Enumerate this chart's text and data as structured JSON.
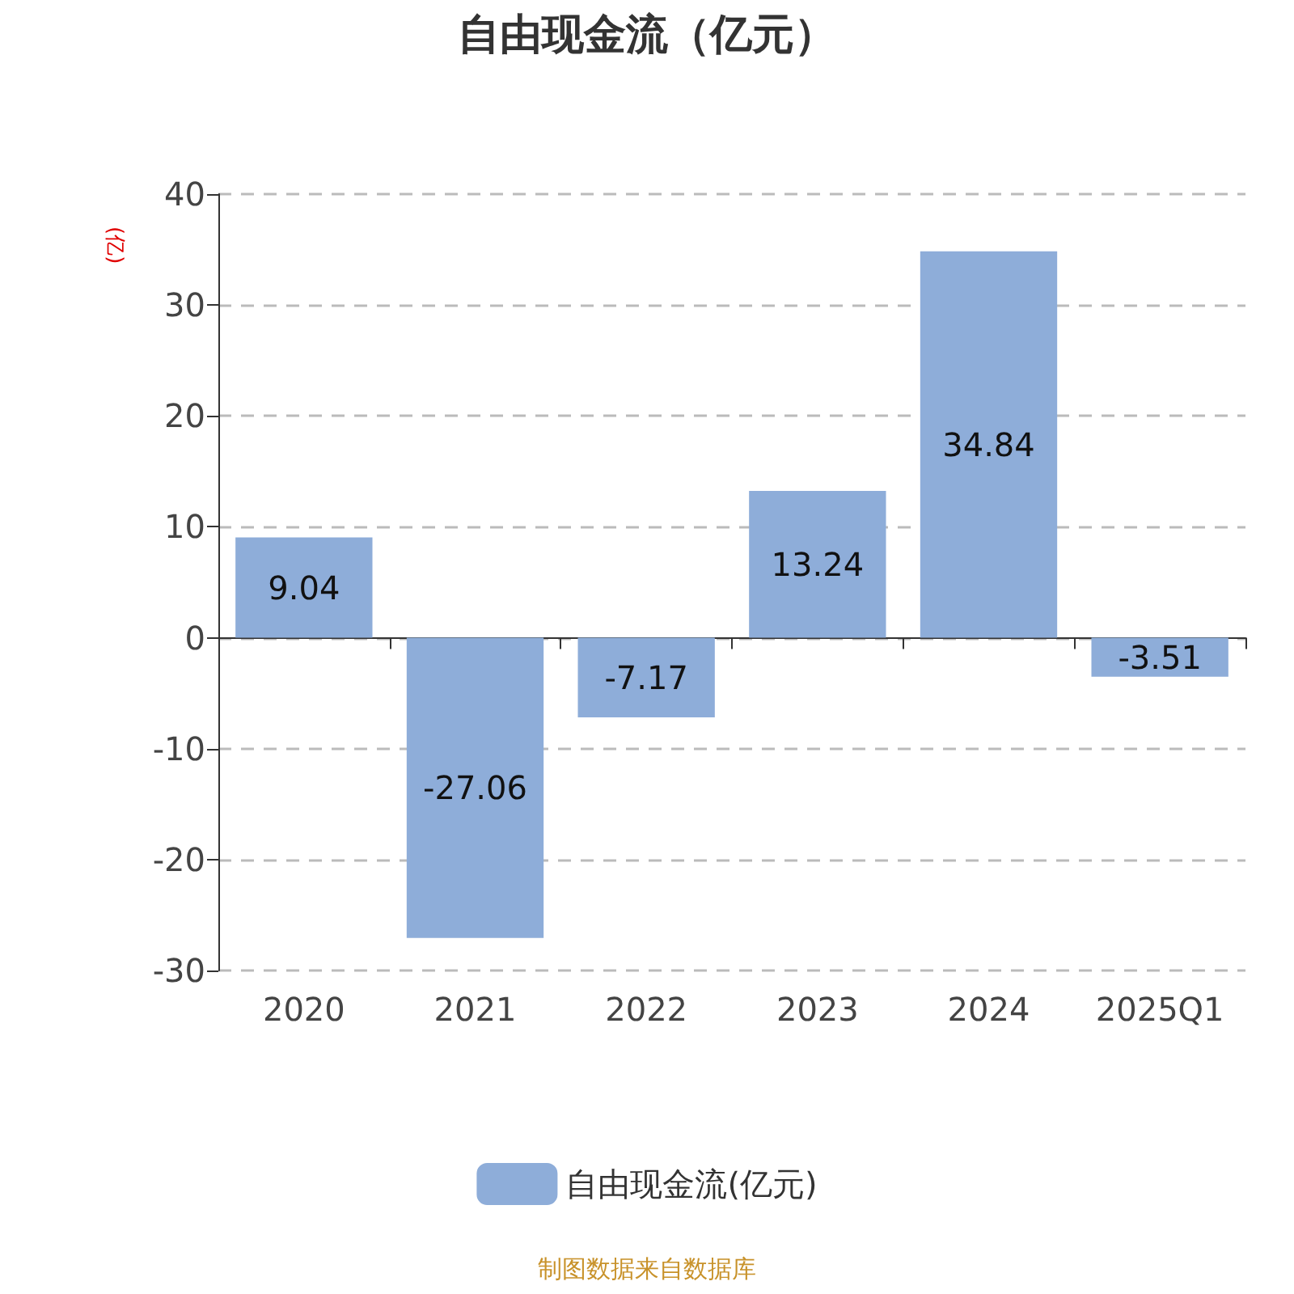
{
  "chart_data": {
    "type": "bar",
    "title": "自由现金流（亿元）",
    "ylabel": "(亿)",
    "categories": [
      "2020",
      "2021",
      "2022",
      "2023",
      "2024",
      "2025Q1"
    ],
    "series": [
      {
        "name": "自由现金流(亿元)",
        "color": "#8eadd9",
        "values": [
          9.04,
          -27.06,
          -7.17,
          13.24,
          34.84,
          -3.51
        ]
      }
    ],
    "ylim": [
      -30,
      40
    ],
    "yticks": [
      -30,
      -20,
      -10,
      0,
      10,
      20,
      30,
      40
    ],
    "grid": "y",
    "legend": "bottom",
    "data_labels": true,
    "annotations": [
      "制图数据来自数据库"
    ]
  }
}
